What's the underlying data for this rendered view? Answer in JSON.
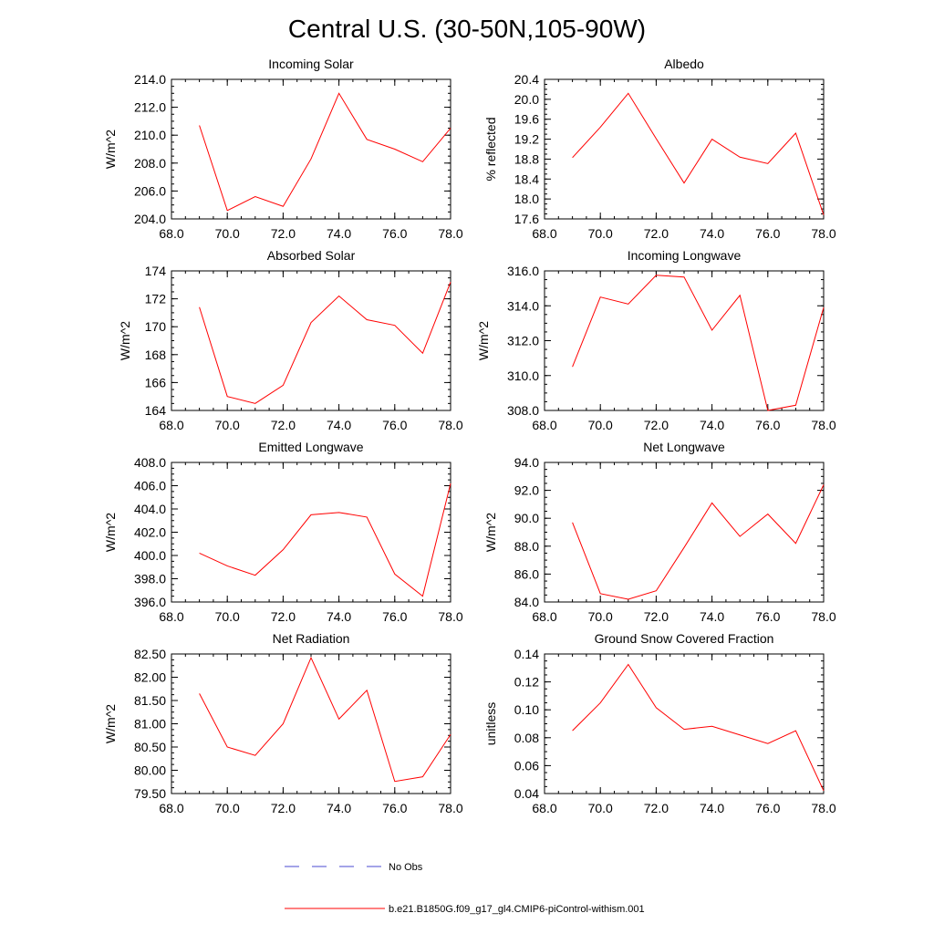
{
  "title": "Central U.S. (30-50N,105-90W)",
  "colors": {
    "model": "#ff0000",
    "obs": "#4a4ad0",
    "axis": "#000000"
  },
  "legend": {
    "obs_label": "No Obs",
    "model_label": "b.e21.B1850G.f09_g17_gl4.CMIP6-piControl-withism.001"
  },
  "chart_data": [
    {
      "type": "line",
      "title": "Incoming Solar",
      "ylabel": "W/m^2",
      "xlim": [
        68,
        78
      ],
      "ylim": [
        204,
        214
      ],
      "xticks": [
        68,
        70,
        72,
        74,
        76,
        78
      ],
      "xtick_labels": [
        "68.0",
        "70.0",
        "72.0",
        "74.0",
        "76.0",
        "78.0"
      ],
      "yticks": [
        204,
        206,
        208,
        210,
        212,
        214
      ],
      "ytick_labels": [
        "204.0",
        "206.0",
        "208.0",
        "210.0",
        "212.0",
        "214.0"
      ],
      "series": [
        {
          "name": "b.e21.B1850G.f09_g17_gl4.CMIP6-piControl-withism.001",
          "x": [
            69,
            70,
            71,
            72,
            73,
            74,
            75,
            76,
            77,
            78
          ],
          "y": [
            210.7,
            204.6,
            205.6,
            204.9,
            208.3,
            213.0,
            209.7,
            209.0,
            208.1,
            210.5
          ]
        }
      ]
    },
    {
      "type": "line",
      "title": "Albedo",
      "ylabel": "% reflected",
      "xlim": [
        68,
        78
      ],
      "ylim": [
        17.6,
        20.4
      ],
      "xticks": [
        68,
        70,
        72,
        74,
        76,
        78
      ],
      "xtick_labels": [
        "68.0",
        "70.0",
        "72.0",
        "74.0",
        "76.0",
        "78.0"
      ],
      "yticks": [
        17.6,
        18.0,
        18.4,
        18.8,
        19.2,
        19.6,
        20.0,
        20.4
      ],
      "ytick_labels": [
        "17.6",
        "18.0",
        "18.4",
        "18.8",
        "19.2",
        "19.6",
        "20.0",
        "20.4"
      ],
      "series": [
        {
          "name": "b.e21.B1850G.f09_g17_gl4.CMIP6-piControl-withism.001",
          "x": [
            69,
            70,
            71,
            72,
            73,
            74,
            75,
            76,
            77,
            78
          ],
          "y": [
            18.83,
            19.44,
            20.12,
            19.21,
            18.32,
            19.2,
            18.84,
            18.71,
            19.32,
            17.68
          ]
        }
      ]
    },
    {
      "type": "line",
      "title": "Absorbed Solar",
      "ylabel": "W/m^2",
      "xlim": [
        68,
        78
      ],
      "ylim": [
        164,
        174
      ],
      "xticks": [
        68,
        70,
        72,
        74,
        76,
        78
      ],
      "xtick_labels": [
        "68.0",
        "70.0",
        "72.0",
        "74.0",
        "76.0",
        "78.0"
      ],
      "yticks": [
        164,
        166,
        168,
        170,
        172,
        174
      ],
      "ytick_labels": [
        "164",
        "166",
        "168",
        "170",
        "172",
        "174"
      ],
      "series": [
        {
          "name": "b.e21.B1850G.f09_g17_gl4.CMIP6-piControl-withism.001",
          "x": [
            69,
            70,
            71,
            72,
            73,
            74,
            75,
            76,
            77,
            78
          ],
          "y": [
            171.4,
            165.0,
            164.5,
            165.8,
            170.3,
            172.2,
            170.5,
            170.1,
            168.1,
            173.2
          ]
        }
      ]
    },
    {
      "type": "line",
      "title": "Incoming Longwave",
      "ylabel": "W/m^2",
      "xlim": [
        68,
        78
      ],
      "ylim": [
        308,
        316
      ],
      "xticks": [
        68,
        70,
        72,
        74,
        76,
        78
      ],
      "xtick_labels": [
        "68.0",
        "70.0",
        "72.0",
        "74.0",
        "76.0",
        "78.0"
      ],
      "yticks": [
        308,
        310,
        312,
        314,
        316
      ],
      "ytick_labels": [
        "308.0",
        "310.0",
        "312.0",
        "314.0",
        "316.0"
      ],
      "series": [
        {
          "name": "b.e21.B1850G.f09_g17_gl4.CMIP6-piControl-withism.001",
          "x": [
            69,
            70,
            71,
            72,
            73,
            74,
            75,
            76,
            77,
            78
          ],
          "y": [
            310.5,
            314.5,
            314.1,
            315.75,
            315.65,
            312.6,
            314.6,
            308.0,
            308.3,
            313.9
          ]
        }
      ]
    },
    {
      "type": "line",
      "title": "Emitted Longwave",
      "ylabel": "W/m^2",
      "xlim": [
        68,
        78
      ],
      "ylim": [
        396,
        408
      ],
      "xticks": [
        68,
        70,
        72,
        74,
        76,
        78
      ],
      "xtick_labels": [
        "68.0",
        "70.0",
        "72.0",
        "74.0",
        "76.0",
        "78.0"
      ],
      "yticks": [
        396,
        398,
        400,
        402,
        404,
        406,
        408
      ],
      "ytick_labels": [
        "396.0",
        "398.0",
        "400.0",
        "402.0",
        "404.0",
        "406.0",
        "408.0"
      ],
      "series": [
        {
          "name": "b.e21.B1850G.f09_g17_gl4.CMIP6-piControl-withism.001",
          "x": [
            69,
            70,
            71,
            72,
            73,
            74,
            75,
            76,
            77,
            78
          ],
          "y": [
            400.2,
            399.1,
            398.3,
            400.5,
            403.5,
            403.7,
            403.3,
            398.4,
            396.5,
            406.2
          ]
        }
      ]
    },
    {
      "type": "line",
      "title": "Net Longwave",
      "ylabel": "W/m^2",
      "xlim": [
        68,
        78
      ],
      "ylim": [
        84,
        94
      ],
      "xticks": [
        68,
        70,
        72,
        74,
        76,
        78
      ],
      "xtick_labels": [
        "68.0",
        "70.0",
        "72.0",
        "74.0",
        "76.0",
        "78.0"
      ],
      "yticks": [
        84,
        86,
        88,
        90,
        92,
        94
      ],
      "ytick_labels": [
        "84.0",
        "86.0",
        "88.0",
        "90.0",
        "92.0",
        "94.0"
      ],
      "series": [
        {
          "name": "b.e21.B1850G.f09_g17_gl4.CMIP6-piControl-withism.001",
          "x": [
            69,
            70,
            71,
            72,
            73,
            74,
            75,
            76,
            77,
            78
          ],
          "y": [
            89.7,
            84.6,
            84.2,
            84.8,
            87.9,
            91.1,
            88.7,
            90.3,
            88.2,
            92.4
          ]
        }
      ]
    },
    {
      "type": "line",
      "title": "Net Radiation",
      "ylabel": "W/m^2",
      "xlim": [
        68,
        78
      ],
      "ylim": [
        79.5,
        82.5
      ],
      "xticks": [
        68,
        70,
        72,
        74,
        76,
        78
      ],
      "xtick_labels": [
        "68.0",
        "70.0",
        "72.0",
        "74.0",
        "76.0",
        "78.0"
      ],
      "yticks": [
        79.5,
        80.0,
        80.5,
        81.0,
        81.5,
        82.0,
        82.5
      ],
      "ytick_labels": [
        "79.50",
        "80.00",
        "80.50",
        "81.00",
        "81.50",
        "82.00",
        "82.50"
      ],
      "series": [
        {
          "name": "b.e21.B1850G.f09_g17_gl4.CMIP6-piControl-withism.001",
          "x": [
            69,
            70,
            71,
            72,
            73,
            74,
            75,
            76,
            77,
            78
          ],
          "y": [
            81.65,
            80.5,
            80.32,
            81.0,
            82.42,
            81.1,
            81.72,
            79.76,
            79.86,
            80.77
          ]
        }
      ]
    },
    {
      "type": "line",
      "title": "Ground Snow Covered Fraction",
      "ylabel": "unitless",
      "xlim": [
        68,
        78
      ],
      "ylim": [
        0.04,
        0.14
      ],
      "xticks": [
        68,
        70,
        72,
        74,
        76,
        78
      ],
      "xtick_labels": [
        "68.0",
        "70.0",
        "72.0",
        "74.0",
        "76.0",
        "78.0"
      ],
      "yticks": [
        0.04,
        0.06,
        0.08,
        0.1,
        0.12,
        0.14
      ],
      "ytick_labels": [
        "0.04",
        "0.06",
        "0.08",
        "0.10",
        "0.12",
        "0.14"
      ],
      "series": [
        {
          "name": "b.e21.B1850G.f09_g17_gl4.CMIP6-piControl-withism.001",
          "x": [
            69,
            70,
            71,
            72,
            73,
            74,
            75,
            76,
            77,
            78
          ],
          "y": [
            0.085,
            0.105,
            0.1325,
            0.1015,
            0.086,
            0.0882,
            0.082,
            0.0758,
            0.085,
            0.042
          ]
        }
      ]
    }
  ]
}
